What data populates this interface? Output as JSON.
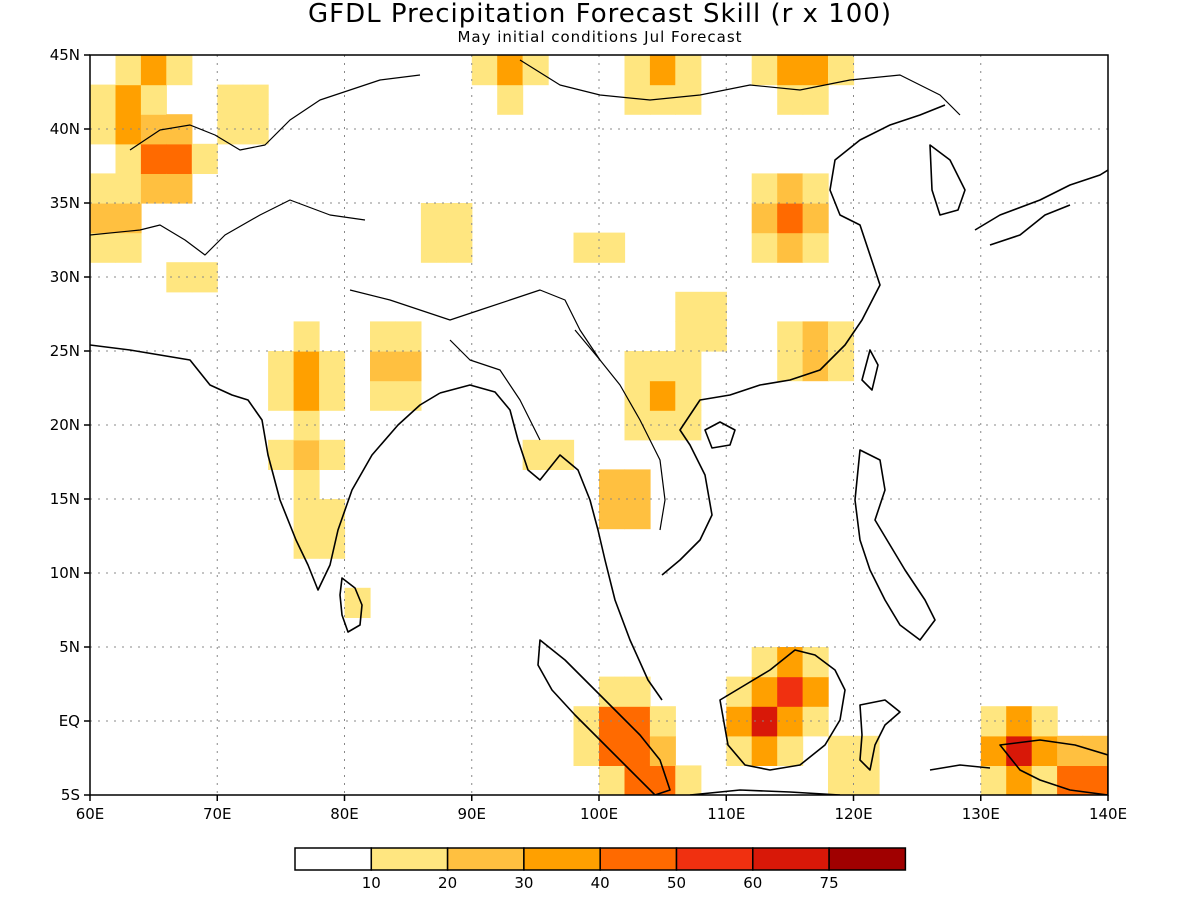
{
  "header": {
    "title": "GFDL Precipitation Forecast Skill (r x 100)",
    "subtitle": "May initial conditions  Jul Forecast"
  },
  "axes": {
    "x_ticks": [
      "60E",
      "70E",
      "80E",
      "90E",
      "100E",
      "110E",
      "120E",
      "130E",
      "140E"
    ],
    "x_values": [
      60,
      70,
      80,
      90,
      100,
      110,
      120,
      130,
      140
    ],
    "y_ticks": [
      "5S",
      "EQ",
      "5N",
      "10N",
      "15N",
      "20N",
      "25N",
      "30N",
      "35N",
      "40N",
      "45N"
    ],
    "y_values": [
      -5,
      0,
      5,
      10,
      15,
      20,
      25,
      30,
      35,
      40,
      45
    ],
    "lon_range": [
      60,
      140
    ],
    "lat_range": [
      -5,
      45
    ],
    "grid": "dotted"
  },
  "legend": {
    "labels": [
      "10",
      "20",
      "30",
      "40",
      "50",
      "60",
      "75"
    ],
    "colors": [
      "#ffffff",
      "#ffe680",
      "#ffc040",
      "#ffa000",
      "#ff6a00",
      "#f03010",
      "#d81808",
      "#a00000"
    ]
  },
  "regions": [
    {
      "lon": 66,
      "lat": 38,
      "value": 55
    },
    {
      "lon": 63,
      "lat": 41,
      "value": 35
    },
    {
      "lon": 65,
      "lat": 44,
      "value": 30
    },
    {
      "lon": 72,
      "lat": 41,
      "value": 20
    },
    {
      "lon": 62,
      "lat": 34,
      "value": 30
    },
    {
      "lon": 68,
      "lat": 30,
      "value": 15
    },
    {
      "lon": 77,
      "lat": 23,
      "value": 40
    },
    {
      "lon": 77,
      "lat": 18,
      "value": 25
    },
    {
      "lon": 78,
      "lat": 13,
      "value": 20
    },
    {
      "lon": 81,
      "lat": 8,
      "value": 15
    },
    {
      "lon": 84,
      "lat": 24,
      "value": 25
    },
    {
      "lon": 93,
      "lat": 44,
      "value": 30
    },
    {
      "lon": 105,
      "lat": 44,
      "value": 35
    },
    {
      "lon": 116,
      "lat": 44,
      "value": 40
    },
    {
      "lon": 115,
      "lat": 34,
      "value": 40
    },
    {
      "lon": 117,
      "lat": 25,
      "value": 30
    },
    {
      "lon": 105,
      "lat": 22,
      "value": 35
    },
    {
      "lon": 108,
      "lat": 27,
      "value": 20
    },
    {
      "lon": 102,
      "lat": 15,
      "value": 30
    },
    {
      "lon": 96,
      "lat": 18,
      "value": 20
    },
    {
      "lon": 88,
      "lat": 33,
      "value": 20
    },
    {
      "lon": 100,
      "lat": 32,
      "value": 20
    },
    {
      "lon": 113,
      "lat": 0,
      "value": 60
    },
    {
      "lon": 115,
      "lat": 2,
      "value": 55
    },
    {
      "lon": 102,
      "lat": -1,
      "value": 60
    },
    {
      "lon": 104,
      "lat": -4,
      "value": 55
    },
    {
      "lon": 133,
      "lat": -2,
      "value": 60
    },
    {
      "lon": 138,
      "lat": -4,
      "value": 50
    },
    {
      "lon": 120,
      "lat": -3,
      "value": 15
    }
  ]
}
